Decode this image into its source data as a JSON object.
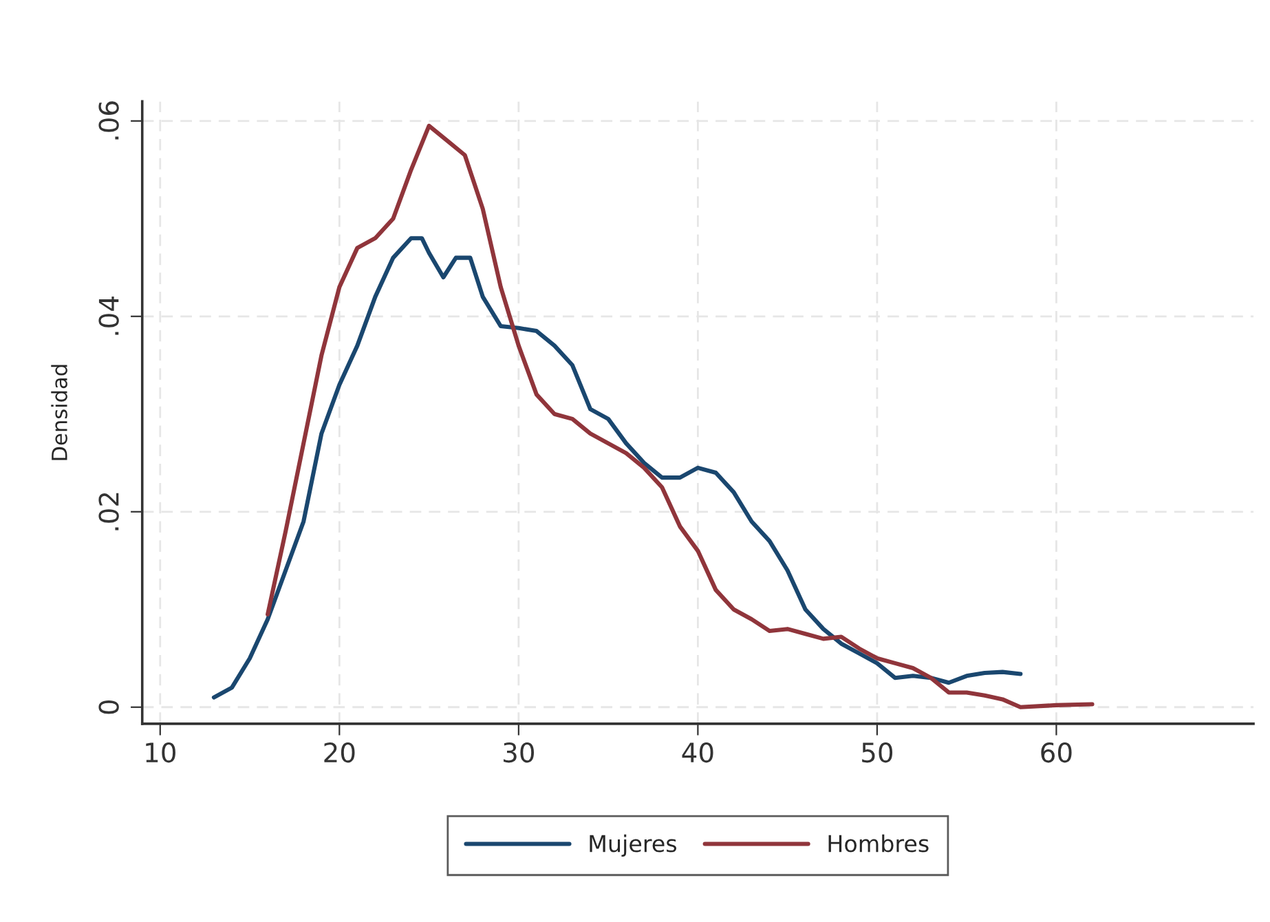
{
  "chart_data": {
    "type": "line",
    "ylabel": "Densidad",
    "xlim": [
      9,
      71
    ],
    "ylim": [
      -0.0017,
      0.062
    ],
    "xticks": [
      10,
      20,
      30,
      40,
      50,
      60
    ],
    "yticks": [
      {
        "value": 0,
        "label": "0"
      },
      {
        "value": 0.02,
        "label": ".02"
      },
      {
        "value": 0.04,
        "label": ".04"
      },
      {
        "value": 0.06,
        "label": ".06"
      }
    ],
    "grid": true,
    "legend": "bottom",
    "line_style": "solid",
    "marker": "none",
    "series": [
      {
        "name": "Mujeres",
        "color": "#1a476f",
        "x": [
          13,
          14,
          15,
          16,
          17,
          18,
          19,
          20,
          21,
          22,
          23,
          24,
          24.6,
          25,
          25.8,
          26.5,
          27.3,
          28,
          29,
          30,
          31,
          32,
          33,
          34,
          35,
          36,
          37,
          38,
          39,
          40,
          41,
          42,
          43,
          44,
          45,
          46,
          47,
          48,
          49,
          50,
          51,
          52,
          53,
          54,
          55,
          56,
          57,
          58
        ],
        "values": [
          0.001,
          0.002,
          0.005,
          0.009,
          0.014,
          0.019,
          0.028,
          0.033,
          0.037,
          0.042,
          0.046,
          0.048,
          0.048,
          0.0465,
          0.044,
          0.046,
          0.046,
          0.042,
          0.039,
          0.0388,
          0.0385,
          0.037,
          0.035,
          0.0305,
          0.0295,
          0.027,
          0.025,
          0.0235,
          0.0235,
          0.0245,
          0.024,
          0.022,
          0.019,
          0.017,
          0.014,
          0.01,
          0.008,
          0.0065,
          0.0055,
          0.0045,
          0.003,
          0.0032,
          0.003,
          0.0025,
          0.0032,
          0.0035,
          0.0036,
          0.0034
        ]
      },
      {
        "name": "Hombres",
        "color": "#90353b",
        "x": [
          16,
          17,
          18,
          19,
          20,
          21,
          22,
          23,
          24,
          25,
          26,
          27,
          28,
          29,
          30,
          31,
          32,
          33,
          34,
          35,
          36,
          37,
          38,
          39,
          40,
          41,
          42,
          43,
          44,
          45,
          46,
          47,
          48,
          49,
          50,
          51,
          52,
          53,
          54,
          55,
          56,
          57,
          58,
          60,
          62
        ],
        "values": [
          0.0095,
          0.018,
          0.027,
          0.036,
          0.043,
          0.047,
          0.048,
          0.05,
          0.055,
          0.0595,
          0.058,
          0.0565,
          0.051,
          0.043,
          0.037,
          0.032,
          0.03,
          0.0295,
          0.028,
          0.027,
          0.026,
          0.0245,
          0.0225,
          0.0185,
          0.016,
          0.012,
          0.01,
          0.009,
          0.0078,
          0.008,
          0.0075,
          0.007,
          0.0072,
          0.006,
          0.005,
          0.0045,
          0.004,
          0.003,
          0.0015,
          0.0015,
          0.0012,
          0.0008,
          0.0,
          0.0002,
          0.0003
        ]
      }
    ]
  }
}
